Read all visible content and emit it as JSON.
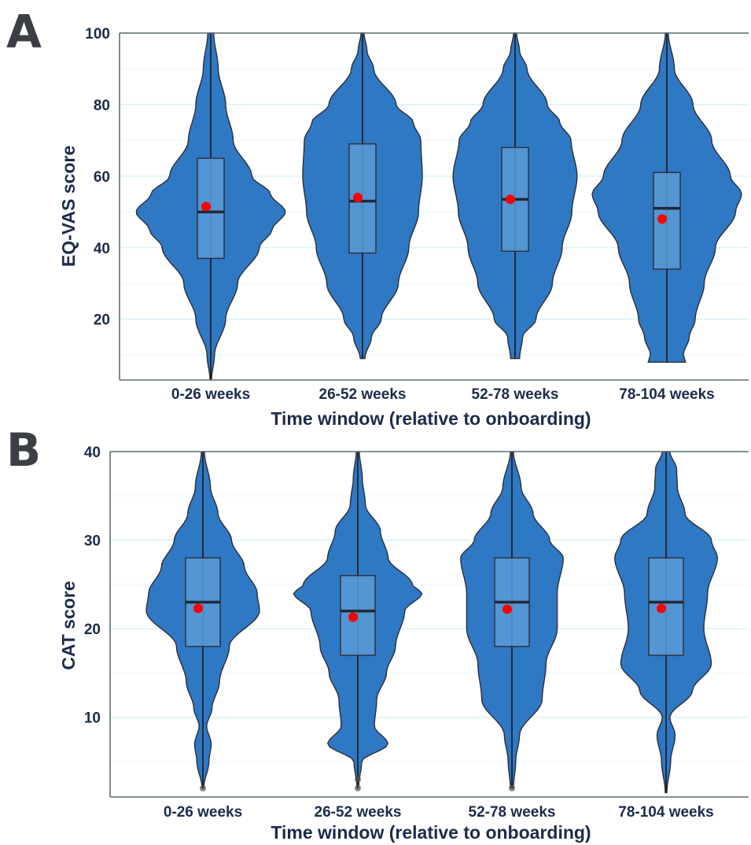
{
  "panels": [
    {
      "label": "A",
      "ylabel": "EQ-VAS score",
      "xlabel": "Time window (relative to onboarding)",
      "chart_data_index": 0
    },
    {
      "label": "B",
      "ylabel": "CAT score",
      "xlabel": "Time window (relative to onboarding)",
      "chart_data_index": 1
    }
  ],
  "chart_data": [
    {
      "type": "violin",
      "xlabel": "Time window (relative to onboarding)",
      "ylabel": "EQ-VAS score",
      "categories": [
        "0-26 weeks",
        "26-52 weeks",
        "52-78 weeks",
        "78-104 weeks"
      ],
      "yticks": [
        20,
        40,
        60,
        80,
        100
      ],
      "ylim": [
        3,
        100
      ],
      "grid": true,
      "colors": {
        "violin": "#2f78c4",
        "box": "#5a9ad6",
        "mean": "#ff0000"
      },
      "groups": [
        {
          "category": "0-26 weeks",
          "min": 3,
          "q1": 37,
          "median": 50,
          "q3": 65,
          "max": 100,
          "mean": 51.5,
          "density": [
            [
              3,
              0.01
            ],
            [
              10,
              0.05
            ],
            [
              20,
              0.2
            ],
            [
              30,
              0.36
            ],
            [
              40,
              0.65
            ],
            [
              45,
              0.82
            ],
            [
              50,
              1.0
            ],
            [
              55,
              0.8
            ],
            [
              60,
              0.55
            ],
            [
              70,
              0.3
            ],
            [
              80,
              0.2
            ],
            [
              90,
              0.1
            ],
            [
              100,
              0.04
            ]
          ],
          "outliers": []
        },
        {
          "category": "26-52 weeks",
          "min": 9,
          "q1": 38.5,
          "median": 53,
          "q3": 69,
          "max": 100,
          "mean": 54,
          "density": [
            [
              9,
              0.03
            ],
            [
              15,
              0.12
            ],
            [
              20,
              0.25
            ],
            [
              30,
              0.48
            ],
            [
              40,
              0.62
            ],
            [
              50,
              0.75
            ],
            [
              60,
              0.8
            ],
            [
              70,
              0.78
            ],
            [
              75,
              0.68
            ],
            [
              80,
              0.45
            ],
            [
              90,
              0.15
            ],
            [
              95,
              0.06
            ],
            [
              100,
              0.02
            ]
          ],
          "outliers": []
        },
        {
          "category": "52-78 weeks",
          "min": 9,
          "q1": 39,
          "median": 53.5,
          "q3": 68,
          "max": 100,
          "mean": 53.5,
          "density": [
            [
              9,
              0.06
            ],
            [
              15,
              0.1
            ],
            [
              20,
              0.28
            ],
            [
              30,
              0.5
            ],
            [
              40,
              0.63
            ],
            [
              50,
              0.76
            ],
            [
              60,
              0.83
            ],
            [
              70,
              0.75
            ],
            [
              75,
              0.6
            ],
            [
              80,
              0.43
            ],
            [
              90,
              0.16
            ],
            [
              95,
              0.06
            ],
            [
              100,
              0.02
            ]
          ],
          "outliers": []
        },
        {
          "category": "78-104 weeks",
          "min": 8,
          "q1": 34,
          "median": 51,
          "q3": 61,
          "max": 100,
          "mean": 48,
          "density": [
            [
              8,
              0.25
            ],
            [
              10,
              0.22
            ],
            [
              15,
              0.3
            ],
            [
              20,
              0.38
            ],
            [
              30,
              0.5
            ],
            [
              40,
              0.65
            ],
            [
              50,
              0.92
            ],
            [
              55,
              1.0
            ],
            [
              60,
              0.85
            ],
            [
              70,
              0.6
            ],
            [
              80,
              0.35
            ],
            [
              90,
              0.1
            ],
            [
              100,
              0.02
            ]
          ],
          "outliers": []
        }
      ]
    },
    {
      "type": "violin",
      "xlabel": "Time window (relative to onboarding)",
      "ylabel": "CAT score",
      "categories": [
        "0-26 weeks",
        "26-52 weeks",
        "52-78 weeks",
        "78-104 weeks"
      ],
      "yticks": [
        10,
        20,
        30,
        40
      ],
      "ylim": [
        1,
        40
      ],
      "grid": true,
      "colors": {
        "violin": "#2f78c4",
        "box": "#5a9ad6",
        "mean": "#ff0000"
      },
      "groups": [
        {
          "category": "0-26 weeks",
          "min": 2,
          "q1": 18,
          "median": 23,
          "q3": 28,
          "max": 40,
          "mean": 22.3,
          "density": [
            [
              2,
              0.01
            ],
            [
              5,
              0.08
            ],
            [
              7,
              0.11
            ],
            [
              9,
              0.05
            ],
            [
              11,
              0.12
            ],
            [
              14,
              0.22
            ],
            [
              18,
              0.35
            ],
            [
              22,
              0.75
            ],
            [
              24,
              0.72
            ],
            [
              27,
              0.55
            ],
            [
              30,
              0.38
            ],
            [
              33,
              0.2
            ],
            [
              36,
              0.1
            ],
            [
              40,
              0.02
            ]
          ],
          "outliers": [
            2
          ]
        },
        {
          "category": "26-52 weeks",
          "min": 2,
          "q1": 17,
          "median": 22,
          "q3": 26,
          "max": 40,
          "mean": 21.3,
          "density": [
            [
              2,
              0.01
            ],
            [
              5,
              0.05
            ],
            [
              7,
              0.4
            ],
            [
              9,
              0.22
            ],
            [
              12,
              0.25
            ],
            [
              15,
              0.38
            ],
            [
              18,
              0.5
            ],
            [
              22,
              0.62
            ],
            [
              24,
              0.85
            ],
            [
              25,
              0.72
            ],
            [
              28,
              0.4
            ],
            [
              31,
              0.3
            ],
            [
              34,
              0.1
            ],
            [
              37,
              0.06
            ],
            [
              40,
              0.02
            ]
          ],
          "outliers": [
            2,
            3
          ]
        },
        {
          "category": "52-78 weeks",
          "min": 2,
          "q1": 18,
          "median": 23,
          "q3": 28,
          "max": 40,
          "mean": 22.2,
          "density": [
            [
              2,
              0.02
            ],
            [
              5,
              0.05
            ],
            [
              8,
              0.1
            ],
            [
              12,
              0.4
            ],
            [
              16,
              0.45
            ],
            [
              20,
              0.6
            ],
            [
              24,
              0.6
            ],
            [
              28,
              0.68
            ],
            [
              30,
              0.5
            ],
            [
              33,
              0.28
            ],
            [
              36,
              0.12
            ],
            [
              40,
              0.02
            ]
          ],
          "outliers": [
            2
          ]
        },
        {
          "category": "78-104 weeks",
          "min": 1.5,
          "q1": 17,
          "median": 23,
          "q3": 28,
          "max": 40,
          "mean": 22.3,
          "density": [
            [
              1.5,
              0.01
            ],
            [
              5,
              0.06
            ],
            [
              8,
              0.12
            ],
            [
              10,
              0.05
            ],
            [
              13,
              0.35
            ],
            [
              16,
              0.6
            ],
            [
              20,
              0.5
            ],
            [
              24,
              0.55
            ],
            [
              28,
              0.68
            ],
            [
              30,
              0.6
            ],
            [
              33,
              0.25
            ],
            [
              36,
              0.15
            ],
            [
              38,
              0.14
            ],
            [
              40,
              0.05
            ]
          ],
          "outliers": []
        }
      ]
    }
  ]
}
